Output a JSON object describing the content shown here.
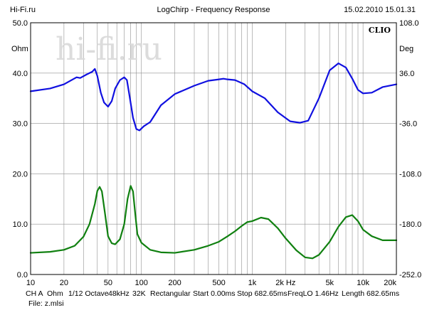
{
  "header": {
    "site": "Hi-Fi.ru",
    "title": "LogChirp - Frequency Response",
    "datetime": "15.02.2010 15.01.31"
  },
  "watermark": "hi-fi.ru",
  "brand": "CLIO",
  "chart_data": {
    "type": "line",
    "title": "LogChirp - Frequency Response",
    "x_scale": "log",
    "xlim": [
      10,
      20000
    ],
    "x_ticks": [
      {
        "v": 10,
        "label": "10"
      },
      {
        "v": 20,
        "label": "20"
      },
      {
        "v": 50,
        "label": "50"
      },
      {
        "v": 100,
        "label": "100"
      },
      {
        "v": 200,
        "label": "200"
      },
      {
        "v": 500,
        "label": "500"
      },
      {
        "v": 1000,
        "label": "1k"
      },
      {
        "v": 2000,
        "label": "2k Hz"
      },
      {
        "v": 5000,
        "label": "5k"
      },
      {
        "v": 10000,
        "label": "10k"
      },
      {
        "v": 20000,
        "label": "20k"
      }
    ],
    "y_left": {
      "unit": "Ohm",
      "lim": [
        0,
        50
      ],
      "ticks": [
        "0.0",
        "10.0",
        "20.0",
        "30.0",
        "40.0",
        "50.0"
      ]
    },
    "y_right": {
      "unit": "Deg",
      "lim": [
        -252,
        108
      ],
      "ticks": [
        "-252.0",
        "-180.0",
        "-108.0",
        "-36.0",
        "36.0",
        "108.0"
      ]
    },
    "grid": true,
    "series": [
      {
        "color": "#1010e0",
        "axis": "right",
        "points": [
          [
            10,
            10
          ],
          [
            15,
            14
          ],
          [
            20,
            20
          ],
          [
            24,
            27
          ],
          [
            26,
            30
          ],
          [
            28,
            29
          ],
          [
            32,
            34
          ],
          [
            36,
            38
          ],
          [
            38,
            42
          ],
          [
            40,
            32
          ],
          [
            43,
            8
          ],
          [
            46,
            -6
          ],
          [
            50,
            -12
          ],
          [
            54,
            -4
          ],
          [
            58,
            14
          ],
          [
            64,
            26
          ],
          [
            70,
            30
          ],
          [
            74,
            26
          ],
          [
            78,
            4
          ],
          [
            84,
            -28
          ],
          [
            90,
            -44
          ],
          [
            96,
            -46
          ],
          [
            105,
            -40
          ],
          [
            120,
            -34
          ],
          [
            150,
            -10
          ],
          [
            200,
            6
          ],
          [
            300,
            18
          ],
          [
            400,
            25
          ],
          [
            500,
            27
          ],
          [
            550,
            28
          ],
          [
            600,
            27
          ],
          [
            700,
            26
          ],
          [
            850,
            20
          ],
          [
            1000,
            10
          ],
          [
            1300,
            0
          ],
          [
            1700,
            -20
          ],
          [
            2200,
            -33
          ],
          [
            2700,
            -35
          ],
          [
            3200,
            -32
          ],
          [
            4000,
            0
          ],
          [
            5000,
            40
          ],
          [
            6000,
            50
          ],
          [
            7000,
            44
          ],
          [
            8000,
            28
          ],
          [
            9000,
            12
          ],
          [
            10000,
            7
          ],
          [
            12000,
            8
          ],
          [
            15000,
            16
          ],
          [
            20000,
            20
          ]
        ]
      },
      {
        "color": "#108010",
        "axis": "left",
        "points": [
          [
            10,
            4.3
          ],
          [
            15,
            4.5
          ],
          [
            20,
            4.9
          ],
          [
            25,
            5.7
          ],
          [
            30,
            7.5
          ],
          [
            34,
            10
          ],
          [
            38,
            14
          ],
          [
            40,
            16.6
          ],
          [
            42,
            17.4
          ],
          [
            44,
            16.5
          ],
          [
            47,
            12
          ],
          [
            50,
            7.6
          ],
          [
            54,
            6.2
          ],
          [
            58,
            6.0
          ],
          [
            64,
            7.0
          ],
          [
            70,
            10
          ],
          [
            75,
            15
          ],
          [
            80,
            17.6
          ],
          [
            84,
            16.5
          ],
          [
            88,
            12
          ],
          [
            92,
            8
          ],
          [
            100,
            6.3
          ],
          [
            120,
            4.9
          ],
          [
            150,
            4.4
          ],
          [
            200,
            4.3
          ],
          [
            300,
            4.9
          ],
          [
            400,
            5.7
          ],
          [
            500,
            6.5
          ],
          [
            600,
            7.6
          ],
          [
            700,
            8.6
          ],
          [
            800,
            9.6
          ],
          [
            900,
            10.4
          ],
          [
            1000,
            10.6
          ],
          [
            1200,
            11.3
          ],
          [
            1400,
            11.0
          ],
          [
            1700,
            9.2
          ],
          [
            2000,
            7.2
          ],
          [
            2500,
            4.8
          ],
          [
            3000,
            3.4
          ],
          [
            3500,
            3.2
          ],
          [
            4000,
            3.9
          ],
          [
            5000,
            6.5
          ],
          [
            6000,
            9.5
          ],
          [
            7000,
            11.4
          ],
          [
            8000,
            11.8
          ],
          [
            9000,
            10.6
          ],
          [
            10000,
            8.9
          ],
          [
            12000,
            7.6
          ],
          [
            15000,
            6.8
          ],
          [
            20000,
            6.8
          ]
        ]
      }
    ]
  },
  "footer": {
    "line1": [
      "CH A",
      "Ohm",
      "1/12 Octave",
      "48kHz",
      "32K",
      "Rectangular",
      "Start 0.00ms",
      "Stop 682.65ms",
      "FreqLO 1.46Hz",
      "Length 682.65ms"
    ],
    "line2": "File: z.mlsi"
  }
}
